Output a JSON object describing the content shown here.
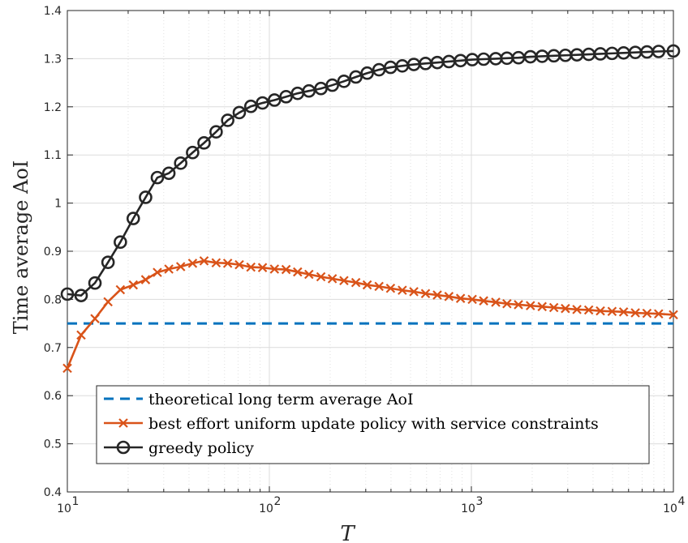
{
  "chart_data": {
    "type": "line",
    "xscale": "log",
    "xlim": [
      10,
      10000
    ],
    "ylim": [
      0.4,
      1.4
    ],
    "grid": true,
    "xlabel": "T",
    "ylabel": "Time average AoI",
    "yticks": [
      "0.4",
      "0.5",
      "0.6",
      "0.7",
      "0.8",
      "0.9",
      "1",
      "1.1",
      "1.2",
      "1.3",
      "1.4"
    ],
    "xtick_mantissa": "10",
    "xtick_exponents": [
      "1",
      "2",
      "3",
      "4"
    ],
    "legend_position": "lower-center",
    "series": [
      {
        "name": "theoretical long term average AoI",
        "style": "dashed",
        "color": "#0072BD",
        "x": [
          10,
          10000
        ],
        "y": [
          0.75,
          0.75
        ]
      },
      {
        "name": "best effort uniform update policy with service constraints",
        "style": "solid",
        "marker": "x",
        "color": "#D95319",
        "x": [
          10,
          11.7,
          13.7,
          15.9,
          18.3,
          21.2,
          24.4,
          27.9,
          31.8,
          36.4,
          41.7,
          47.5,
          54.5,
          62.2,
          71.0,
          81.0,
          92.5,
          106,
          121,
          138,
          157,
          180,
          205,
          234,
          268,
          305,
          349,
          398,
          455,
          519,
          593,
          678,
          774,
          884,
          1010,
          1150,
          1320,
          1500,
          1710,
          1960,
          2240,
          2560,
          2920,
          3330,
          3810,
          4350,
          4970,
          5670,
          6480,
          7400,
          8450,
          10000
        ],
        "y": [
          0.657,
          0.726,
          0.76,
          0.795,
          0.82,
          0.83,
          0.841,
          0.856,
          0.863,
          0.868,
          0.875,
          0.88,
          0.876,
          0.875,
          0.872,
          0.867,
          0.866,
          0.863,
          0.862,
          0.857,
          0.852,
          0.847,
          0.843,
          0.839,
          0.835,
          0.83,
          0.827,
          0.823,
          0.819,
          0.816,
          0.812,
          0.809,
          0.806,
          0.802,
          0.8,
          0.797,
          0.794,
          0.791,
          0.789,
          0.787,
          0.785,
          0.783,
          0.781,
          0.779,
          0.778,
          0.776,
          0.775,
          0.774,
          0.772,
          0.771,
          0.77,
          0.768
        ]
      },
      {
        "name": "greedy policy",
        "style": "solid",
        "marker": "o",
        "color": "#262626",
        "x": [
          10,
          11.7,
          13.7,
          15.9,
          18.3,
          21.2,
          24.4,
          27.9,
          31.8,
          36.4,
          41.7,
          47.5,
          54.5,
          62.2,
          71.0,
          81.0,
          92.5,
          106,
          121,
          138,
          157,
          180,
          205,
          234,
          268,
          305,
          349,
          398,
          455,
          519,
          593,
          678,
          774,
          884,
          1010,
          1150,
          1320,
          1500,
          1710,
          1960,
          2240,
          2560,
          2920,
          3330,
          3810,
          4350,
          4970,
          5670,
          6480,
          7400,
          8450,
          10000
        ],
        "y": [
          0.811,
          0.808,
          0.834,
          0.877,
          0.919,
          0.968,
          1.012,
          1.053,
          1.062,
          1.083,
          1.105,
          1.125,
          1.148,
          1.172,
          1.188,
          1.201,
          1.208,
          1.214,
          1.221,
          1.228,
          1.233,
          1.238,
          1.245,
          1.253,
          1.262,
          1.27,
          1.277,
          1.282,
          1.285,
          1.288,
          1.29,
          1.292,
          1.294,
          1.296,
          1.298,
          1.299,
          1.3,
          1.301,
          1.302,
          1.304,
          1.305,
          1.306,
          1.307,
          1.308,
          1.309,
          1.31,
          1.311,
          1.312,
          1.313,
          1.314,
          1.315,
          1.316
        ]
      }
    ]
  }
}
